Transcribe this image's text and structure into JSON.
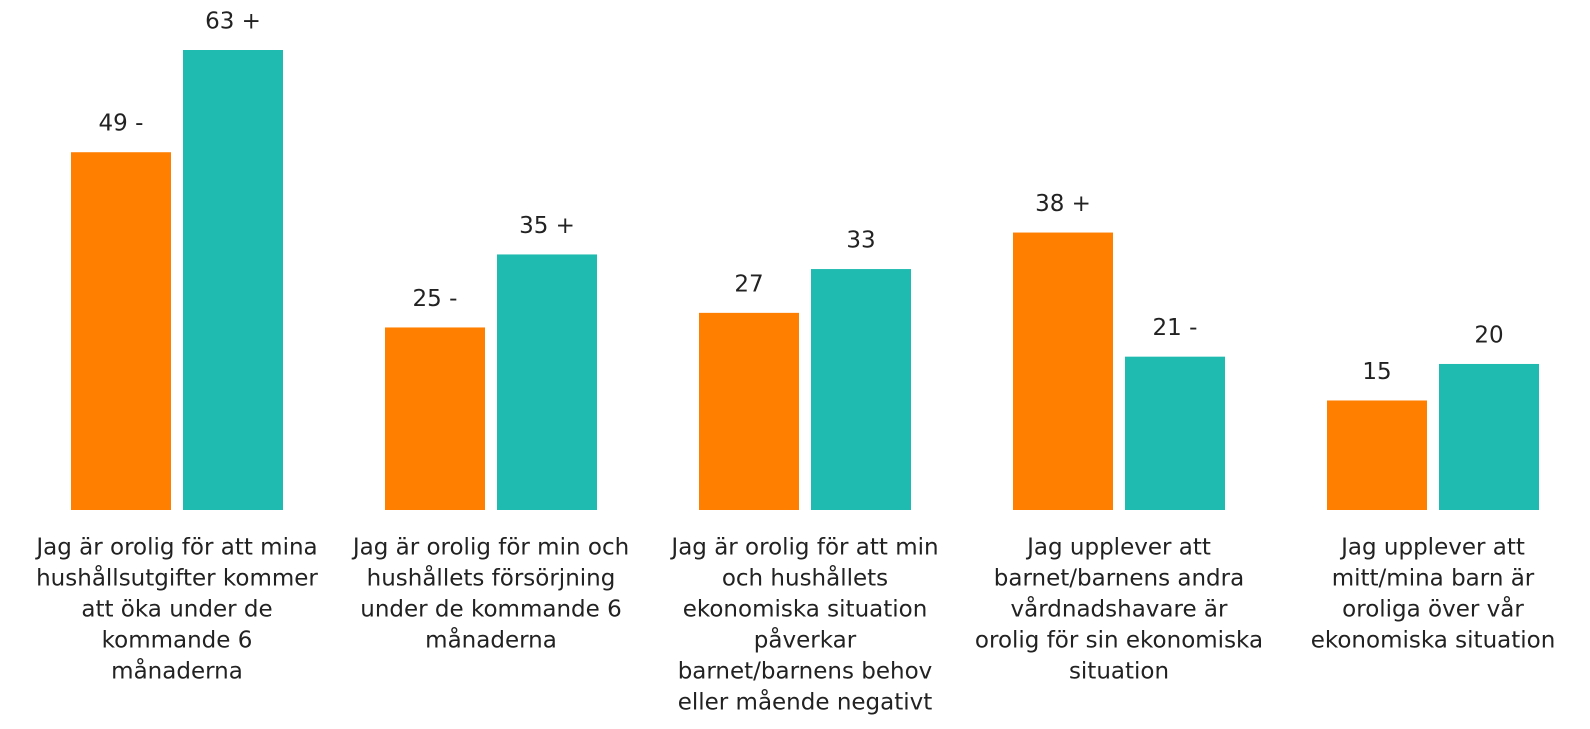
{
  "chart_data": {
    "type": "bar",
    "categories": [
      [
        "Jag är orolig för att mina",
        "hushållsutgifter kommer",
        "att öka under de",
        "kommande 6",
        "månaderna"
      ],
      [
        "Jag är orolig för min och",
        "hushållets försörjning",
        "under de kommande 6",
        "månaderna"
      ],
      [
        "Jag är orolig för att min",
        "och hushållets",
        "ekonomiska situation",
        "påverkar",
        "barnet/barnens behov",
        "eller mående negativt"
      ],
      [
        "Jag upplever att",
        "barnet/barnens andra",
        "vårdnadshavare är",
        "orolig för sin ekonomiska",
        "situation"
      ],
      [
        "Jag upplever att",
        "mitt/mina barn är",
        "oroliga över vår",
        "ekonomiska situation"
      ]
    ],
    "series": [
      {
        "color": "#ff7f00",
        "values": [
          49,
          25,
          27,
          38,
          15
        ],
        "value_labels": [
          "49 -",
          "25 -",
          "27",
          "38 +",
          "15"
        ]
      },
      {
        "color": "#20bbb0",
        "values": [
          63,
          35,
          33,
          21,
          20
        ],
        "value_labels": [
          "63 +",
          "35 +",
          "33",
          "21 -",
          "20"
        ]
      }
    ]
  }
}
